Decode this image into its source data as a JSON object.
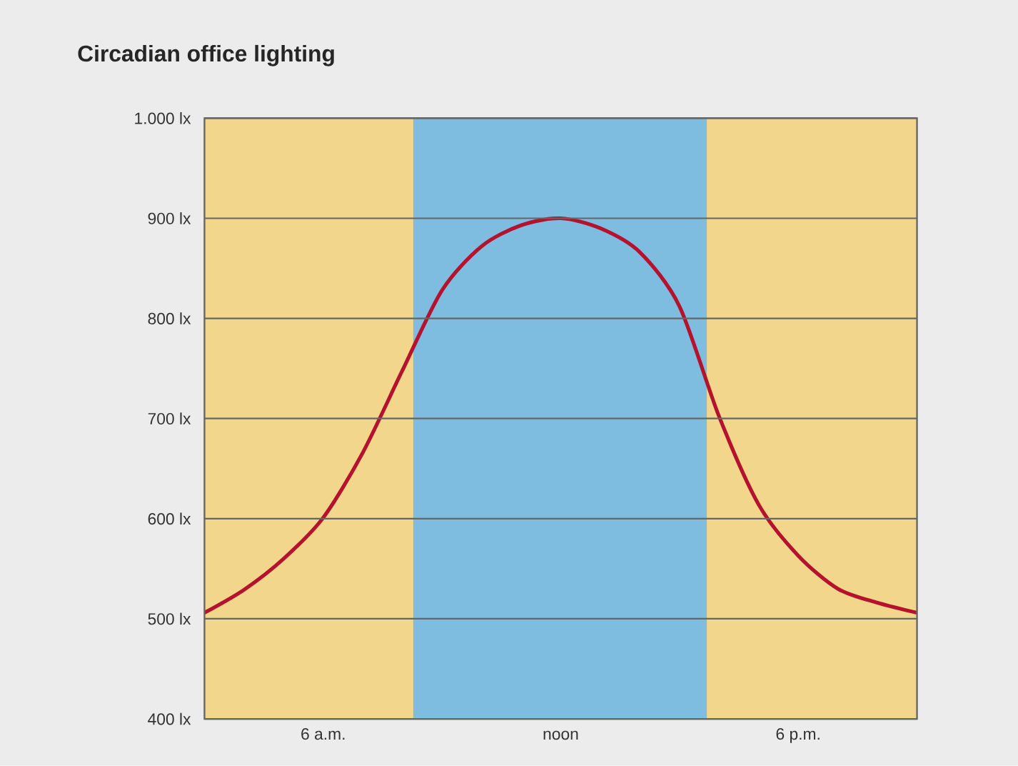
{
  "chart_data": {
    "type": "line",
    "title": "Circadian office lighting",
    "categories": [
      null,
      null,
      null,
      "6 a.m.",
      null,
      null,
      null,
      null,
      null,
      "noon",
      null,
      null,
      null,
      null,
      null,
      "6 p.m.",
      null,
      null,
      null
    ],
    "series": [
      {
        "color": "#b5122e",
        "values": [
          506,
          529,
          560,
          601,
          666,
          748,
          828,
          872,
          893,
          900,
          890,
          866,
          812,
          702,
          614,
          563,
          530,
          516,
          506
        ]
      }
    ],
    "ylim": [
      400,
      1000
    ],
    "yticks": [
      {
        "value": 400,
        "label": "400 lx"
      },
      {
        "value": 500,
        "label": "500 lx"
      },
      {
        "value": 600,
        "label": "600 lx"
      },
      {
        "value": 700,
        "label": "700 lx"
      },
      {
        "value": 800,
        "label": "800 lx"
      },
      {
        "value": 900,
        "label": "900 lx"
      },
      {
        "value": 1000,
        "label": "1.000 lx"
      }
    ],
    "grid": "y",
    "marker": "none",
    "line_style": "solid"
  }
}
